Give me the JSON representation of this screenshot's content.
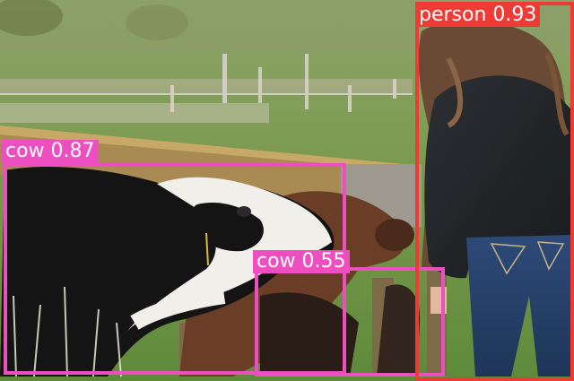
{
  "colors": {
    "cow": "#ee4fc0",
    "person": "#ee3b36"
  },
  "detections": [
    {
      "class": "cow",
      "label": "cow 0.87",
      "color": "cow"
    },
    {
      "class": "cow",
      "label": "cow 0.55",
      "color": "cow"
    },
    {
      "class": "person",
      "label": "person 0.93",
      "color": "person"
    }
  ]
}
